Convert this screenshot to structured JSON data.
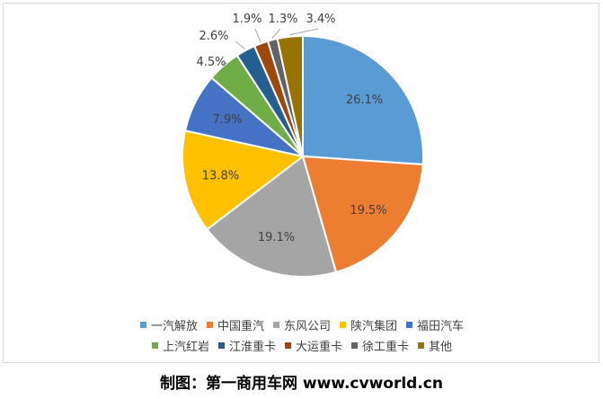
{
  "chart_data": {
    "type": "pie",
    "categories": [
      "一汽解放",
      "中国重汽",
      "东风公司",
      "陕汽集团",
      "福田汽车",
      "上汽红岩",
      "江淮重卡",
      "大运重卡",
      "徐工重卡",
      "其他"
    ],
    "values": [
      26.1,
      19.5,
      19.1,
      13.8,
      7.9,
      4.5,
      2.6,
      1.9,
      1.3,
      3.4
    ],
    "labels": [
      "26.1%",
      "19.5%",
      "19.1%",
      "13.8%",
      "7.9%",
      "4.5%",
      "2.6%",
      "1.9%",
      "1.3%",
      "3.4%"
    ],
    "colors": [
      "#5b9bd5",
      "#ed7d31",
      "#a5a5a5",
      "#ffc000",
      "#4472c4",
      "#70ad47",
      "#255e91",
      "#9e480e",
      "#636363",
      "#997300"
    ],
    "legend_position": "bottom"
  },
  "credit": "制图：第一商用车网 www.cvworld.cn"
}
